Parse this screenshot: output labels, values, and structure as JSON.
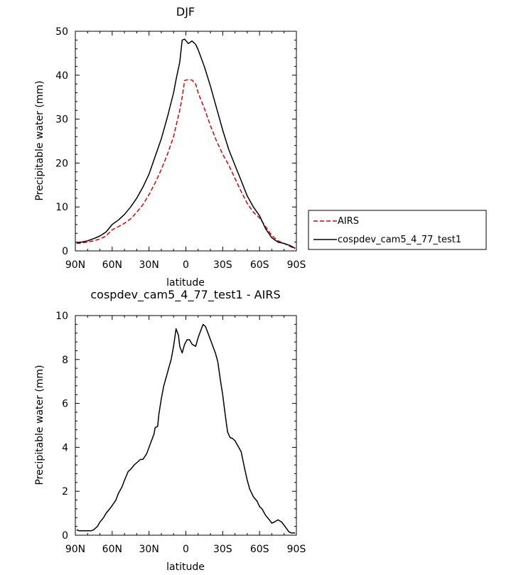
{
  "chart_data": [
    {
      "type": "line",
      "title": "DJF",
      "xlabel": "latitude",
      "ylabel": "Precipitable water (mm)",
      "xlim": [
        90,
        -90
      ],
      "ylim": [
        0,
        50
      ],
      "x_ticks": [
        90,
        60,
        30,
        0,
        -30,
        -60,
        -90
      ],
      "x_tick_labels": [
        "90N",
        "60N",
        "30N",
        "0",
        "30S",
        "60S",
        "90S"
      ],
      "y_ticks": [
        0,
        10,
        20,
        30,
        40,
        50
      ],
      "y_tick_labels": [
        "0",
        "10",
        "20",
        "30",
        "40",
        "50"
      ],
      "legend_position": "right-outside",
      "series": [
        {
          "name": "AIRS",
          "color": "#e00000",
          "dash": "dashed",
          "x": [
            89,
            85,
            80,
            75,
            70,
            65,
            60,
            55,
            50,
            45,
            40,
            35,
            30,
            25,
            20,
            15,
            10,
            8,
            5,
            3,
            1,
            -2,
            -5,
            -8,
            -10,
            -15,
            -20,
            -25,
            -30,
            -35,
            -40,
            -45,
            -50,
            -55,
            -60,
            -65,
            -70,
            -75,
            -80,
            -85,
            -89
          ],
          "values": [
            1.7,
            1.8,
            2.0,
            2.3,
            2.7,
            3.4,
            4.8,
            5.5,
            6.3,
            7.3,
            8.8,
            10.5,
            12.8,
            15.5,
            18.5,
            22.0,
            26.0,
            28.5,
            32.0,
            35.0,
            38.8,
            39.0,
            38.9,
            38.0,
            36.0,
            32.5,
            28.5,
            25.0,
            22.0,
            19.5,
            16.5,
            13.5,
            10.8,
            8.8,
            7.5,
            5.5,
            3.5,
            2.3,
            1.7,
            1.0,
            0.5
          ]
        },
        {
          "name": "cospdev_cam5_4_77_test1",
          "color": "#000000",
          "dash": "solid",
          "x": [
            89,
            85,
            80,
            75,
            70,
            65,
            60,
            55,
            50,
            45,
            40,
            35,
            30,
            25,
            20,
            15,
            10,
            8,
            5,
            3,
            1,
            -2,
            -5,
            -8,
            -10,
            -15,
            -20,
            -25,
            -30,
            -35,
            -40,
            -45,
            -50,
            -55,
            -60,
            -65,
            -70,
            -75,
            -80,
            -85,
            -89
          ],
          "values": [
            1.9,
            2.0,
            2.3,
            2.8,
            3.4,
            4.3,
            6.0,
            7.0,
            8.3,
            10.0,
            12.0,
            14.5,
            17.5,
            21.5,
            25.5,
            30.5,
            36.0,
            39.0,
            43.0,
            48.0,
            48.2,
            47.2,
            47.8,
            47.0,
            45.8,
            42.0,
            37.5,
            32.5,
            27.5,
            23.0,
            19.5,
            16.0,
            12.5,
            10.0,
            8.0,
            5.0,
            3.0,
            2.0,
            1.7,
            1.2,
            0.6
          ]
        }
      ]
    },
    {
      "type": "line",
      "title": "cospdev_cam5_4_77_test1 - AIRS",
      "xlabel": "latitude",
      "ylabel": "Precipitable water (mm)",
      "xlim": [
        90,
        -90
      ],
      "ylim": [
        0,
        10
      ],
      "x_ticks": [
        90,
        60,
        30,
        0,
        -30,
        -60,
        -90
      ],
      "x_tick_labels": [
        "90N",
        "60N",
        "30N",
        "0",
        "30S",
        "60S",
        "90S"
      ],
      "y_ticks": [
        0,
        2,
        4,
        6,
        8,
        10
      ],
      "y_tick_labels": [
        "0",
        "2",
        "4",
        "6",
        "8",
        "10"
      ],
      "series": [
        {
          "color": "#000000",
          "dash": "solid",
          "x": [
            89,
            87,
            85,
            83,
            80,
            77,
            75,
            72,
            70,
            67,
            65,
            62,
            60,
            57,
            55,
            52,
            50,
            47,
            45,
            42,
            40,
            37,
            35,
            32,
            30,
            28,
            26,
            25,
            23,
            22,
            20,
            18,
            16,
            14,
            12,
            10,
            8,
            6,
            5,
            3,
            1,
            -1,
            -3,
            -5,
            -8,
            -10,
            -12,
            -14,
            -16,
            -18,
            -20,
            -22,
            -24,
            -26,
            -28,
            -30,
            -32,
            -34,
            -36,
            -38,
            -40,
            -42,
            -45,
            -48,
            -50,
            -52,
            -55,
            -58,
            -60,
            -62,
            -65,
            -68,
            -70,
            -72,
            -75,
            -78,
            -80,
            -82,
            -84,
            -86,
            -87,
            -89
          ],
          "values": [
            0.25,
            0.2,
            0.2,
            0.2,
            0.2,
            0.2,
            0.25,
            0.4,
            0.6,
            0.8,
            1.0,
            1.2,
            1.35,
            1.6,
            1.9,
            2.2,
            2.5,
            2.9,
            3.0,
            3.2,
            3.3,
            3.45,
            3.45,
            3.7,
            4.0,
            4.3,
            4.6,
            4.9,
            4.95,
            5.5,
            6.2,
            6.8,
            7.2,
            7.6,
            8.0,
            8.6,
            9.4,
            9.1,
            8.6,
            8.3,
            8.7,
            8.9,
            8.9,
            8.7,
            8.6,
            9.0,
            9.3,
            9.6,
            9.5,
            9.2,
            8.9,
            8.6,
            8.3,
            7.9,
            7.1,
            6.4,
            5.5,
            4.7,
            4.45,
            4.4,
            4.3,
            4.1,
            3.8,
            3.0,
            2.5,
            2.1,
            1.75,
            1.55,
            1.3,
            1.2,
            0.9,
            0.7,
            0.55,
            0.6,
            0.7,
            0.6,
            0.45,
            0.3,
            0.15,
            0.1,
            0.1,
            0.1
          ]
        }
      ]
    }
  ]
}
